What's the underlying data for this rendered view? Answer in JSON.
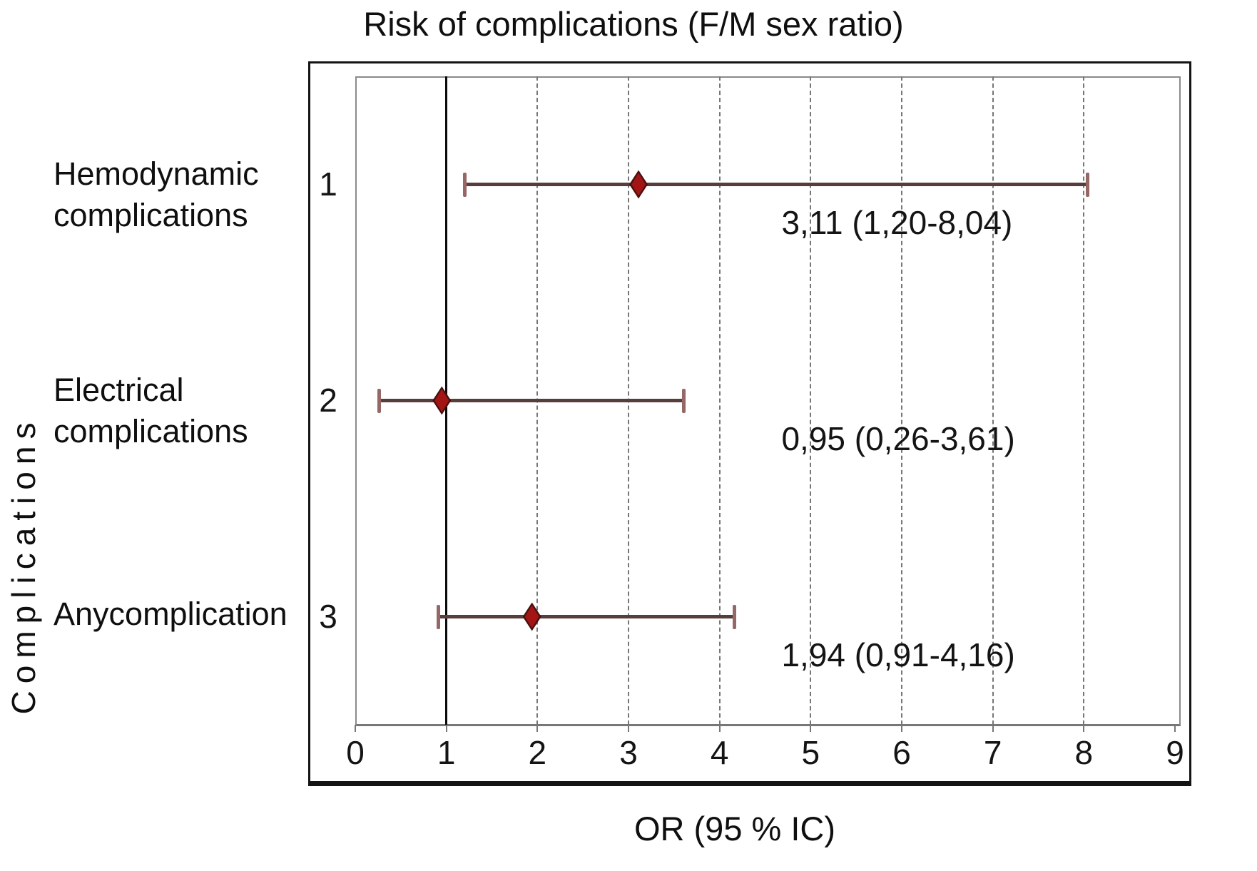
{
  "chart_data": {
    "type": "forest",
    "title": "Risk of complications (F/M sex ratio)",
    "xlabel": "OR (95 % IC)",
    "ylabel": "Complications",
    "xlim": [
      0,
      9
    ],
    "xticks": [
      "0",
      "1",
      "2",
      "3",
      "4",
      "5",
      "6",
      "7",
      "8",
      "9"
    ],
    "grid_x": [
      2,
      3,
      4,
      5,
      6,
      7,
      8
    ],
    "reference_line_x": 1,
    "grid_style": "dashed vertical gridlines, solid black reference line at OR=1",
    "rows": [
      {
        "row_number": "1",
        "category_lines": [
          "Hemodynamic",
          "complications"
        ],
        "or": 3.11,
        "ci_low": 1.2,
        "ci_high": 8.04,
        "or_label": "3,11 (1,20-8,04)"
      },
      {
        "row_number": "2",
        "category_lines": [
          "Electrical",
          "complications"
        ],
        "or": 0.95,
        "ci_low": 0.26,
        "ci_high": 3.61,
        "or_label": "0,95 (0,26-3,61)"
      },
      {
        "row_number": "3",
        "category_lines": [
          "Anycomplication"
        ],
        "or": 1.94,
        "ci_low": 0.91,
        "ci_high": 4.16,
        "or_label": "1,94 (0,91-4,16)"
      }
    ],
    "colors": {
      "marker": "#a31414",
      "marker_edge": "#47100f",
      "error_bar": "#583d3d",
      "error_cap": "#966767",
      "reference_line": "#0a0a0a",
      "grid": "#767676",
      "text": "#141414"
    }
  }
}
